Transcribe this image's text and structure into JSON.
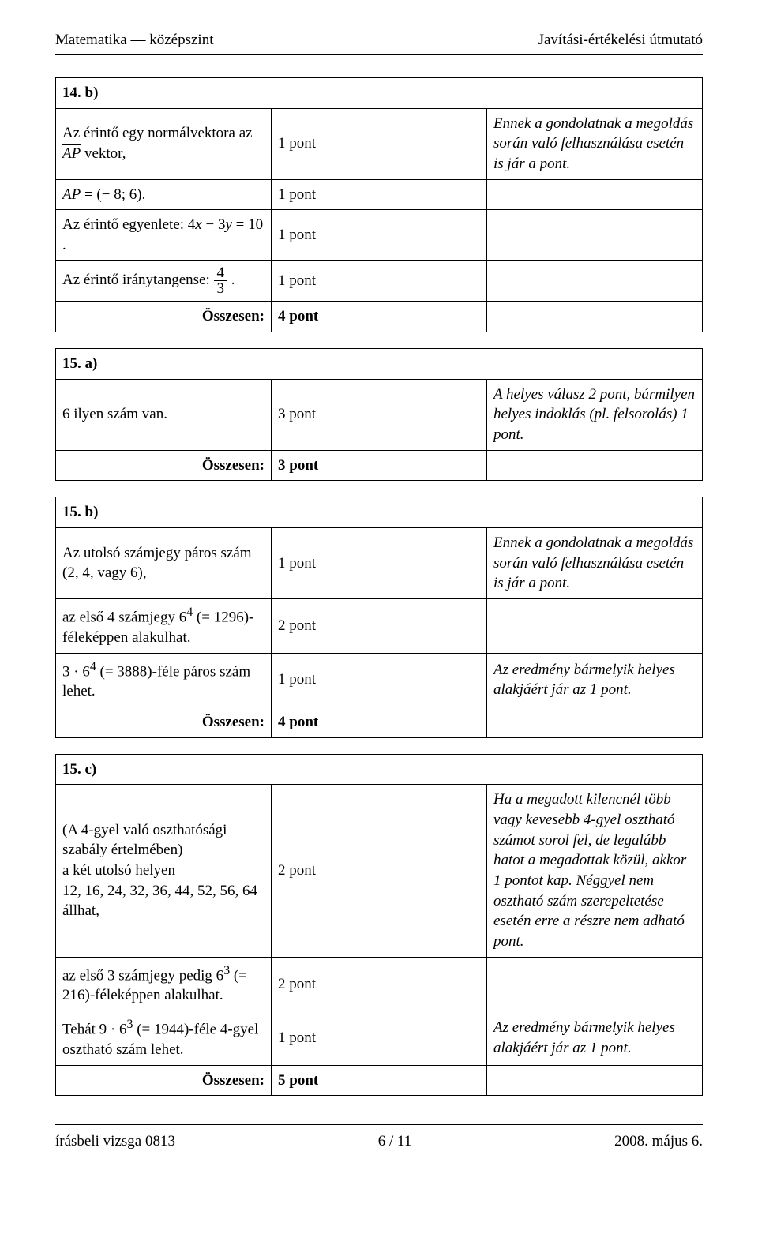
{
  "header": {
    "left": "Matematika — középszint",
    "right": "Javítási-értékelési útmutató"
  },
  "sections": {
    "s14b": {
      "title": "14. b)",
      "rows": [
        {
          "left_html": "Az érintő egy normálvektora az <span class='vec'>AP</span> vektor,",
          "points": "1 pont",
          "note": "Ennek a gondolatnak a megoldás során való felhasználása esetén is jár a pont."
        },
        {
          "left_html": "<span class='vec'>AP</span> = (− 8; 6).",
          "points": "1 pont",
          "note": ""
        },
        {
          "left_html": "Az érintő egyenlete: 4<span class='ital'>x</span> − 3<span class='ital'>y</span> = 10 .",
          "points": "1 pont",
          "note": ""
        },
        {
          "left_html": "Az érintő iránytangense: <span class='frac'><span class='num'>4</span><span class='den'>3</span></span> .",
          "points": "1 pont",
          "note": ""
        }
      ],
      "total_label": "Összesen:",
      "total_points": "4 pont"
    },
    "s15a": {
      "title": "15. a)",
      "rows": [
        {
          "left_html": "6 ilyen szám van.",
          "points": "3 pont",
          "note": "A helyes válasz 2 pont, bármilyen helyes indoklás (pl. felsorolás) 1 pont."
        }
      ],
      "total_label": "Összesen:",
      "total_points": "3 pont"
    },
    "s15b": {
      "title": "15. b)",
      "rows": [
        {
          "left_html": "Az utolsó számjegy páros szám (2,  4, vagy 6),",
          "points": "1 pont",
          "note": "Ennek a gondolatnak a megoldás során való felhasználása esetén is jár a pont."
        },
        {
          "left_html": "az első 4 számjegy  6<sup>4</sup> (= 1296)-féleképpen alakulhat.",
          "points": "2 pont",
          "note": ""
        },
        {
          "left_html": "3 · 6<sup>4</sup> (= 3888)-féle páros szám lehet.",
          "points": "1 pont",
          "note": "Az eredmény bármelyik helyes alakjáért jár az 1 pont."
        }
      ],
      "total_label": "Összesen:",
      "total_points": "4 pont"
    },
    "s15c": {
      "title": "15. c)",
      "rows": [
        {
          "left_html": "(A 4-gyel való oszthatósági szabály értelmében)<br>a két utolsó helyen<br>12, 16, 24, 32, 36, 44, 52, 56, 64 állhat,",
          "points": "2 pont",
          "note": "Ha a megadott kilencnél több vagy kevesebb 4-gyel osztható számot sorol fel, de legalább hatot a megadottak közül, akkor 1 pontot kap. Néggyel nem osztható szám szerepeltetése esetén erre a részre nem adható pont."
        },
        {
          "left_html": "az első 3 számjegy pedig  6<sup>3</sup> (= 216)-féleképpen alakulhat.",
          "points": "2 pont",
          "note": ""
        },
        {
          "left_html": "Tehát 9 · 6<sup>3</sup> (= 1944)-féle 4-gyel osztható szám lehet.",
          "points": "1 pont",
          "note": "Az eredmény bármelyik helyes alakjáért jár az 1 pont."
        }
      ],
      "total_label": "Összesen:",
      "total_points": "5 pont"
    }
  },
  "footer": {
    "left": "írásbeli vizsga 0813",
    "center": "6 / 11",
    "right": "2008. május 6."
  },
  "colors": {
    "text": "#000000",
    "background": "#ffffff",
    "rule": "#000000"
  },
  "fonts": {
    "body_family": "Times New Roman",
    "body_size_pt": 14,
    "title_size_pt": 20,
    "title_weight": "bold"
  }
}
